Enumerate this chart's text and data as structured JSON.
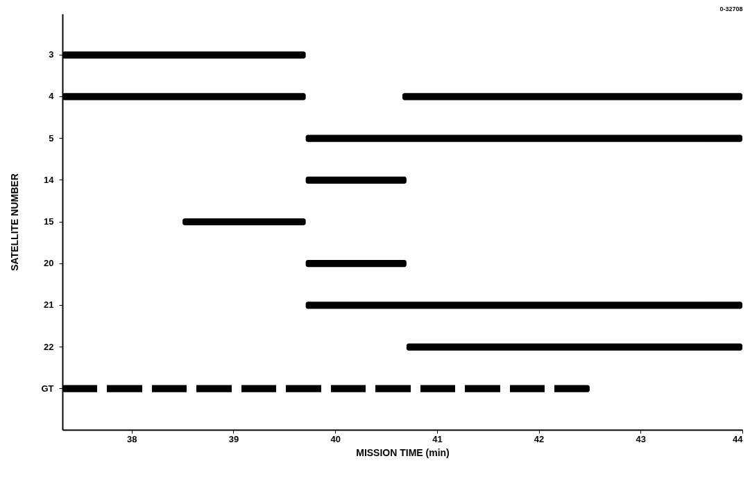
{
  "chart_data": {
    "type": "bar",
    "orientation": "horizontal",
    "xlabel": "MISSION TIME (min)",
    "ylabel": "SATELLITE NUMBER",
    "annotations": [
      "0-32708"
    ],
    "categories": [
      "3",
      "4",
      "5",
      "14",
      "15",
      "20",
      "21",
      "22",
      "GT"
    ],
    "series": [
      {
        "color": "#000000",
        "base": [
          37.32,
          37.32,
          39.71,
          39.71,
          38.5,
          39.71,
          39.71,
          40.7,
          null
        ],
        "values": [
          2.39,
          2.39,
          4.29,
          0.99,
          1.21,
          0.99,
          4.29,
          3.3,
          null
        ]
      },
      {
        "color": "#000000",
        "base": [
          null,
          40.66,
          null,
          null,
          null,
          null,
          null,
          null,
          null
        ],
        "values": [
          null,
          3.34,
          null,
          null,
          null,
          null,
          null,
          null,
          null
        ]
      },
      {
        "color": "#000000",
        "line_style": "dashed",
        "base": [
          null,
          null,
          null,
          null,
          null,
          null,
          null,
          null,
          37.32
        ],
        "values": [
          null,
          null,
          null,
          null,
          null,
          null,
          null,
          null,
          5.18
        ]
      }
    ],
    "xlim": [
      37.32,
      44
    ],
    "xticks": [
      38,
      39,
      40,
      41,
      42,
      43,
      44
    ],
    "grid": false
  }
}
